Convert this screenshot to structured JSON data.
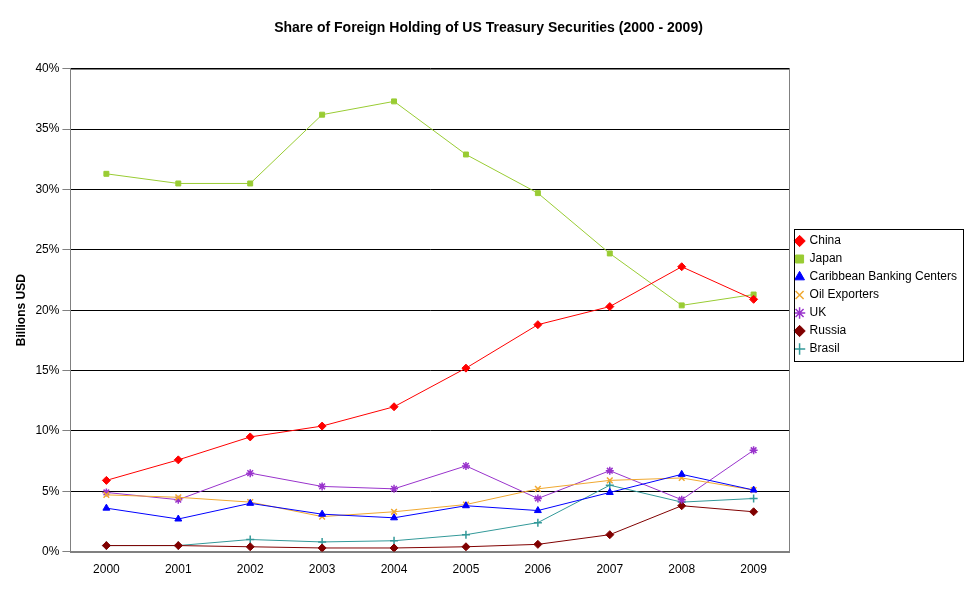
{
  "chart_data": {
    "type": "line",
    "title": "Share of Foreign Holding of US Treasury Securities (2000 - 2009)",
    "y_label": "Billions USD",
    "categories": [
      "2000",
      "2001",
      "2002",
      "2003",
      "2004",
      "2005",
      "2006",
      "2007",
      "2008",
      "2009"
    ],
    "series": [
      {
        "name": "China",
        "color": "#ff0000",
        "marker": "diamond",
        "values": [
          5.9,
          7.6,
          9.5,
          10.4,
          12.0,
          15.2,
          18.8,
          20.3,
          23.6,
          20.9
        ]
      },
      {
        "name": "Japan",
        "color": "#99cc33",
        "marker": "square",
        "values": [
          31.3,
          30.5,
          30.5,
          36.2,
          37.3,
          32.9,
          29.7,
          24.7,
          20.4,
          21.3
        ]
      },
      {
        "name": "Caribbean Banking Centers",
        "color": "#0000ff",
        "marker": "triangle",
        "values": [
          3.6,
          2.7,
          4.0,
          3.1,
          2.8,
          3.8,
          3.4,
          4.9,
          6.4,
          5.1
        ]
      },
      {
        "name": "Oil Exporters",
        "color": "#f0a830",
        "marker": "x",
        "values": [
          4.7,
          4.5,
          4.1,
          2.9,
          3.3,
          3.9,
          5.2,
          5.9,
          6.1,
          5.1
        ]
      },
      {
        "name": "UK",
        "color": "#9933cc",
        "marker": "star",
        "values": [
          4.9,
          4.3,
          6.5,
          5.4,
          5.2,
          7.1,
          4.4,
          6.7,
          4.3,
          8.4
        ]
      },
      {
        "name": "Russia",
        "color": "#800000",
        "marker": "diamond",
        "values": [
          0.5,
          0.5,
          0.4,
          0.3,
          0.3,
          0.4,
          0.6,
          1.4,
          3.8,
          3.3
        ]
      },
      {
        "name": "Brasil",
        "color": "#339999",
        "marker": "plus",
        "values": [
          0.5,
          0.5,
          1.0,
          0.8,
          0.9,
          1.4,
          2.4,
          5.5,
          4.1,
          4.4
        ]
      }
    ],
    "ylim": [
      0,
      40
    ],
    "yticks": [
      {
        "value": 0,
        "label": "0%"
      },
      {
        "value": 5,
        "label": "5%"
      },
      {
        "value": 10,
        "label": "10%"
      },
      {
        "value": 15,
        "label": "15%"
      },
      {
        "value": 20,
        "label": "20%"
      },
      {
        "value": 25,
        "label": "25%"
      },
      {
        "value": 30,
        "label": "30%"
      },
      {
        "value": 35,
        "label": "35%"
      },
      {
        "value": 40,
        "label": "40%"
      }
    ],
    "grid": true,
    "legend": "right"
  }
}
